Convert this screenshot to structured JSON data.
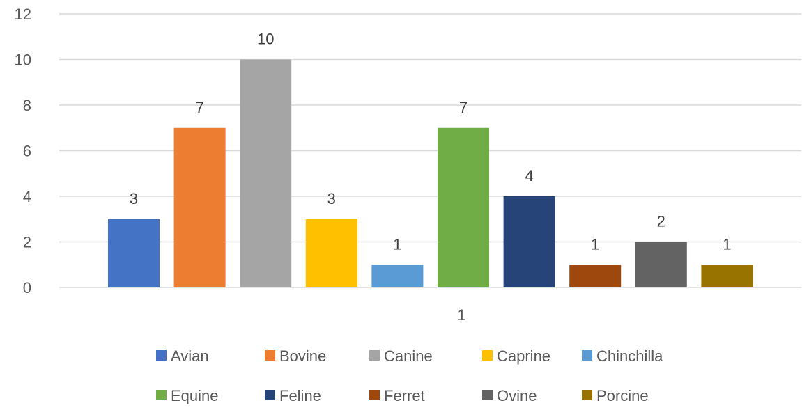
{
  "chart_data": {
    "type": "bar",
    "title": "",
    "xlabel": "",
    "ylabel": "",
    "categories": [
      "1"
    ],
    "ylim": [
      0,
      12
    ],
    "yticks": [
      0,
      2,
      4,
      6,
      8,
      10,
      12
    ],
    "grid": true,
    "legend_position": "bottom",
    "data_labels": true,
    "series": [
      {
        "name": "Avian",
        "values": [
          3
        ],
        "color": "#4472C4"
      },
      {
        "name": "Bovine",
        "values": [
          7
        ],
        "color": "#ED7D31"
      },
      {
        "name": "Canine",
        "values": [
          10
        ],
        "color": "#A5A5A5"
      },
      {
        "name": "Caprine",
        "values": [
          3
        ],
        "color": "#FFC000"
      },
      {
        "name": "Chinchilla",
        "values": [
          1
        ],
        "color": "#5B9BD5"
      },
      {
        "name": "Equine",
        "values": [
          7
        ],
        "color": "#70AD47"
      },
      {
        "name": "Feline",
        "values": [
          4
        ],
        "color": "#264478"
      },
      {
        "name": "Ferret",
        "values": [
          1
        ],
        "color": "#9E480E"
      },
      {
        "name": "Ovine",
        "values": [
          2
        ],
        "color": "#636363"
      },
      {
        "name": "Porcine",
        "values": [
          1
        ],
        "color": "#997300"
      }
    ]
  }
}
